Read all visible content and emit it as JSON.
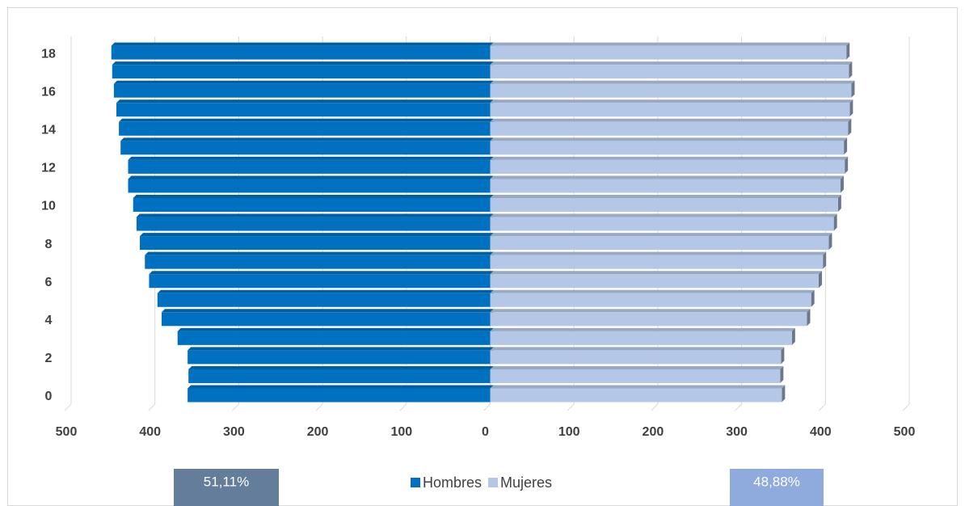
{
  "chart_data": {
    "type": "pyramid",
    "categories": [
      0,
      null,
      2,
      null,
      4,
      null,
      6,
      null,
      8,
      null,
      10,
      null,
      12,
      null,
      14,
      null,
      16,
      null,
      18
    ],
    "series": [
      {
        "name": "Hombres",
        "color": "#0070c0",
        "values": [
          -361,
          -360,
          -361,
          -373,
          -392,
          -397,
          -407,
          -412,
          -418,
          -422,
          -426,
          -432,
          -432,
          -441,
          -443,
          -446,
          -449,
          -451,
          -452
        ]
      },
      {
        "name": "Mujeres",
        "color": "#b4c7e7",
        "values": [
          348,
          346,
          347,
          360,
          378,
          383,
          392,
          397,
          404,
          410,
          415,
          418,
          423,
          422,
          427,
          429,
          431,
          428,
          425
        ]
      }
    ],
    "xlim": [
      -500,
      500
    ],
    "xticks": [
      {
        "value": -500,
        "label": "500"
      },
      {
        "value": -400,
        "label": "400"
      },
      {
        "value": -300,
        "label": "300"
      },
      {
        "value": -200,
        "label": "200"
      },
      {
        "value": -100,
        "label": "100"
      },
      0,
      100,
      200,
      300,
      400,
      500
    ],
    "grid": true,
    "annotations": [
      {
        "text": "51,11%",
        "color": "#647d9b"
      },
      {
        "text": "48,88%",
        "color": "#8faadc"
      }
    ]
  }
}
